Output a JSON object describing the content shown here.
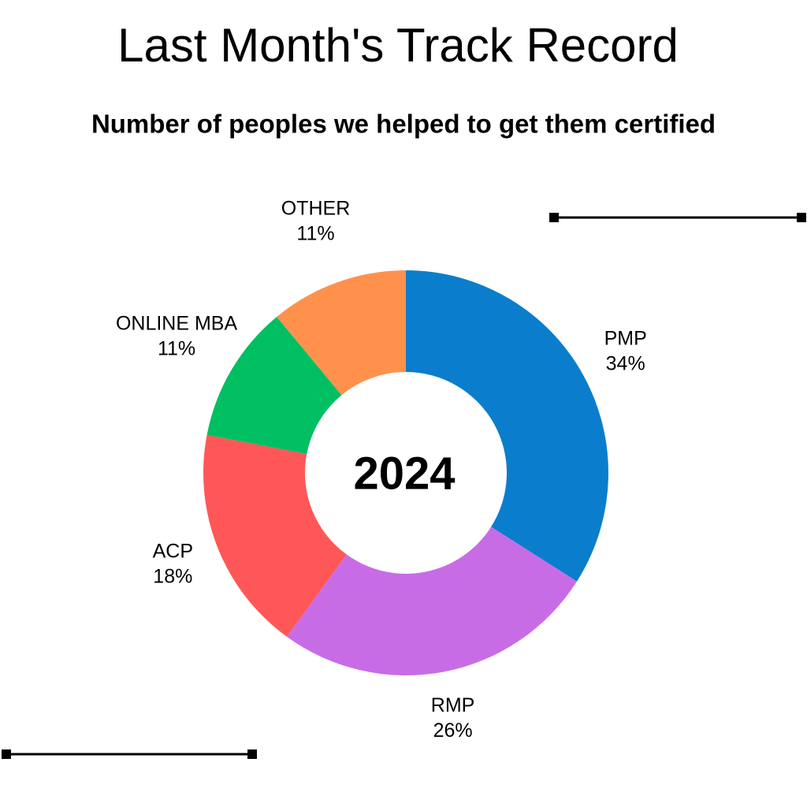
{
  "chart_data": {
    "type": "donut",
    "title": "Last Month's Track Record",
    "subtitle": "Number of peoples we helped to get them certified",
    "center_text": "2024",
    "categories": [
      "PMP",
      "RMP",
      "ACP",
      "ONLINE MBA",
      "OTHER"
    ],
    "values": [
      34,
      26,
      18,
      11,
      11
    ],
    "value_labels": [
      "34%",
      "26%",
      "18%",
      "11%",
      "11%"
    ],
    "colors": [
      "#0a7ecc",
      "#c86ce6",
      "#ff5757",
      "#00bf63",
      "#ff914d"
    ]
  }
}
